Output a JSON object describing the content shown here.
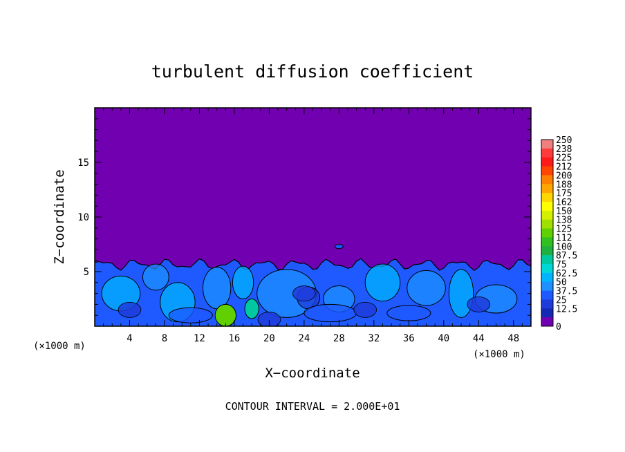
{
  "chart_data": {
    "type": "heatmap",
    "title": "turbulent diffusion coefficient",
    "xlabel": "X−coordinate",
    "ylabel": "Z−coordinate",
    "x_unit": "(×1000 m)",
    "x_unit_repeat": "(×1000 m)",
    "xlim": [
      0,
      50
    ],
    "ylim": [
      0,
      20
    ],
    "x_ticks": [
      "4",
      "8",
      "12",
      "16",
      "20",
      "24",
      "28",
      "32",
      "36",
      "40",
      "44",
      "48"
    ],
    "x_tick_values": [
      4,
      8,
      12,
      16,
      20,
      24,
      28,
      32,
      36,
      40,
      44,
      48
    ],
    "y_ticks": [
      "5",
      "10",
      "15"
    ],
    "y_tick_values": [
      5,
      10,
      15
    ],
    "colorbar": {
      "labels": [
        "250",
        "238",
        "225",
        "212",
        "200",
        "188",
        "175",
        "162",
        "150",
        "138",
        "125",
        "112",
        "100",
        "87.5",
        "75",
        "62.5",
        "50",
        "37.5",
        "25",
        "12.5",
        "0"
      ],
      "colors": [
        "#f08080",
        "#ff3c3c",
        "#ff1a1a",
        "#ff4500",
        "#ff7f00",
        "#ffa500",
        "#ffd700",
        "#ffff00",
        "#d4f000",
        "#a0e000",
        "#60d000",
        "#30c020",
        "#20b040",
        "#00c8a0",
        "#00d8d8",
        "#00b4ff",
        "#1e90ff",
        "#1e5aff",
        "#1e3cdc",
        "#1428b4",
        "#7000b0"
      ]
    },
    "field_summary": {
      "background_value": 0,
      "turbulent_layer_top_z": 6.0,
      "typical_layer_value": 37.5,
      "local_max_value": 125,
      "local_max_location_x": 15
    },
    "contour_interval_text": "CONTOUR INTERVAL = 2.000E+01"
  }
}
